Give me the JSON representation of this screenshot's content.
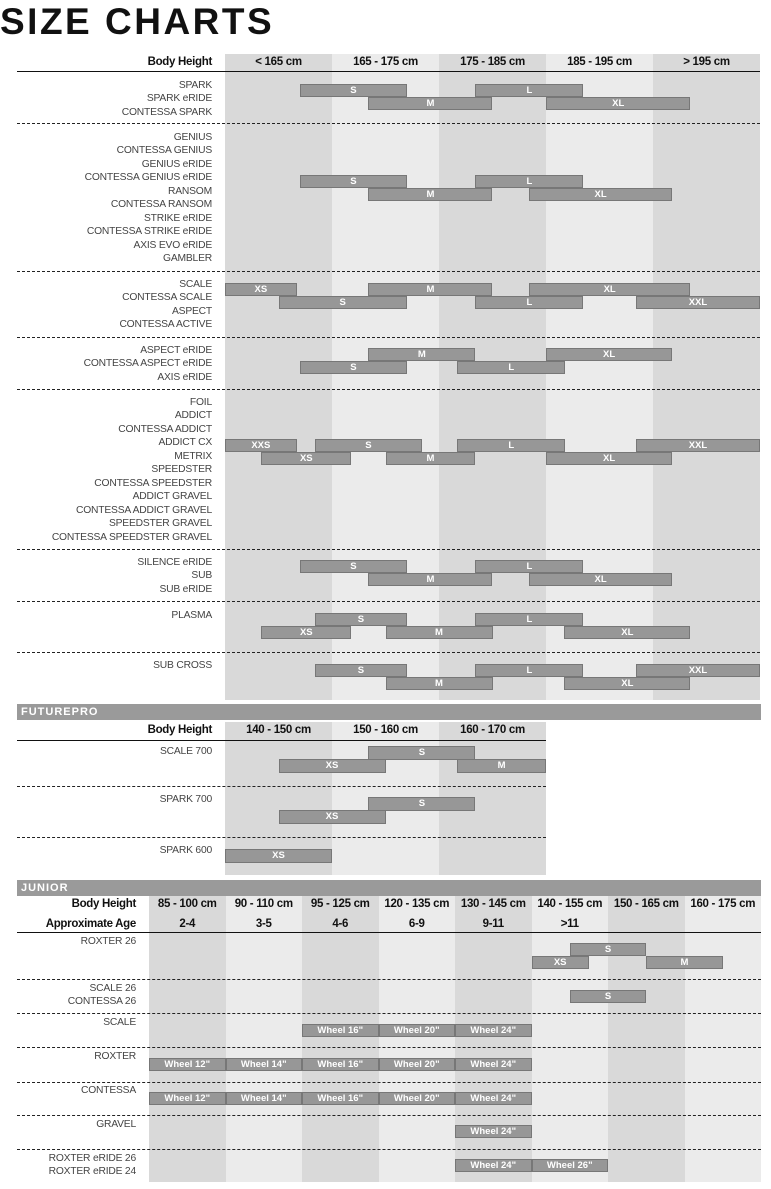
{
  "title": "SIZE CHARTS",
  "colors": {
    "bar": "#979797",
    "column_dark": "#d9d9d9",
    "column_light": "#ebebeb",
    "band": "#9a9a9a"
  },
  "main": {
    "header_label": "Body Height",
    "unit": "cm",
    "columns": [
      "< 165 cm",
      "165 - 175 cm",
      "175 - 185 cm",
      "185 - 195 cm",
      "> 195 cm"
    ],
    "groups": [
      {
        "models": [
          "SPARK",
          "SPARK eRIDE",
          "CONTESSA SPARK"
        ],
        "bars": [
          {
            "size": "S",
            "from": 162,
            "to": 172,
            "row": 0
          },
          {
            "size": "L",
            "from": 178.4,
            "to": 188.5,
            "row": 0
          },
          {
            "size": "M",
            "from": 168.4,
            "to": 180,
            "row": 1
          },
          {
            "size": "XL",
            "from": 185,
            "to": 198.5,
            "row": 1
          }
        ]
      },
      {
        "models": [
          "GENIUS",
          "CONTESSA GENIUS",
          "GENIUS eRIDE",
          "CONTESSA GENIUS eRIDE",
          "RANSOM",
          "CONTESSA RANSOM",
          "STRIKE eRIDE",
          "CONTESSA STRIKE eRIDE",
          "AXIS EVO eRIDE",
          "GAMBLER"
        ],
        "bars": [
          {
            "size": "S",
            "from": 162,
            "to": 172,
            "row": 0
          },
          {
            "size": "L",
            "from": 178.4,
            "to": 188.5,
            "row": 0
          },
          {
            "size": "M",
            "from": 168.4,
            "to": 180,
            "row": 1
          },
          {
            "size": "XL",
            "from": 183.4,
            "to": 196.8,
            "row": 1
          }
        ]
      },
      {
        "models": [
          "SCALE",
          "CONTESSA SCALE",
          "ASPECT",
          "CONTESSA ACTIVE"
        ],
        "bars": [
          {
            "size": "XS",
            "from": 155,
            "to": 161.7,
            "row": 0
          },
          {
            "size": "M",
            "from": 168.4,
            "to": 180,
            "row": 0
          },
          {
            "size": "XL",
            "from": 183.4,
            "to": 198.5,
            "row": 0
          },
          {
            "size": "S",
            "from": 160,
            "to": 172,
            "row": 1
          },
          {
            "size": "L",
            "from": 178.4,
            "to": 188.5,
            "row": 1
          },
          {
            "size": "XXL",
            "from": 193.4,
            "to": 205,
            "row": 1
          }
        ]
      },
      {
        "models": [
          "ASPECT eRIDE",
          "CONTESSA ASPECT eRIDE",
          "AXIS eRIDE"
        ],
        "bars": [
          {
            "size": "M",
            "from": 168.4,
            "to": 178.4,
            "row": 0
          },
          {
            "size": "XL",
            "from": 185,
            "to": 196.8,
            "row": 0
          },
          {
            "size": "S",
            "from": 162,
            "to": 172,
            "row": 1
          },
          {
            "size": "L",
            "from": 176.7,
            "to": 186.8,
            "row": 1
          }
        ]
      },
      {
        "models": [
          "FOIL",
          "ADDICT",
          "CONTESSA ADDICT",
          "ADDICT CX",
          "METRIX",
          "SPEEDSTER",
          "CONTESSA SPEEDSTER",
          "ADDICT GRAVEL",
          "CONTESSA ADDICT GRAVEL",
          "SPEEDSTER GRAVEL",
          "CONTESSA SPEEDSTER GRAVEL"
        ],
        "bars": [
          {
            "size": "XXS",
            "from": 155,
            "to": 161.7,
            "row": 0
          },
          {
            "size": "S",
            "from": 163.4,
            "to": 173.4,
            "row": 0
          },
          {
            "size": "L",
            "from": 176.7,
            "to": 186.8,
            "row": 0
          },
          {
            "size": "XXL",
            "from": 193.4,
            "to": 205,
            "row": 0
          },
          {
            "size": "XS",
            "from": 158.4,
            "to": 166.8,
            "row": 1
          },
          {
            "size": "M",
            "from": 170,
            "to": 178.4,
            "row": 1
          },
          {
            "size": "XL",
            "from": 185,
            "to": 196.8,
            "row": 1
          }
        ]
      },
      {
        "models": [
          "SILENCE eRIDE",
          "SUB",
          "SUB eRIDE"
        ],
        "bars": [
          {
            "size": "S",
            "from": 162,
            "to": 172,
            "row": 0
          },
          {
            "size": "L",
            "from": 178.4,
            "to": 188.5,
            "row": 0
          },
          {
            "size": "M",
            "from": 168.4,
            "to": 180,
            "row": 1
          },
          {
            "size": "XL",
            "from": 183.4,
            "to": 196.8,
            "row": 1
          }
        ]
      },
      {
        "models": [
          "PLASMA"
        ],
        "bars": [
          {
            "size": "S",
            "from": 163.4,
            "to": 172,
            "row": 0
          },
          {
            "size": "L",
            "from": 178.4,
            "to": 188.5,
            "row": 0
          },
          {
            "size": "XS",
            "from": 158.4,
            "to": 166.8,
            "row": 1
          },
          {
            "size": "M",
            "from": 170,
            "to": 180,
            "row": 1
          },
          {
            "size": "XL",
            "from": 186.7,
            "to": 198.5,
            "row": 1
          }
        ]
      },
      {
        "models": [
          "SUB CROSS"
        ],
        "bars": [
          {
            "size": "S",
            "from": 163.4,
            "to": 172,
            "row": 0
          },
          {
            "size": "L",
            "from": 178.4,
            "to": 188.5,
            "row": 0
          },
          {
            "size": "XXL",
            "from": 193.4,
            "to": 205,
            "row": 0
          },
          {
            "size": "M",
            "from": 170,
            "to": 180,
            "row": 1
          },
          {
            "size": "XL",
            "from": 186.7,
            "to": 198.5,
            "row": 1
          }
        ]
      }
    ]
  },
  "futurepro": {
    "section_title": "FUTUREPRO",
    "header_label": "Body Height",
    "unit": "cm",
    "columns": [
      "140 - 150 cm",
      "150 - 160 cm",
      "160 - 170 cm"
    ],
    "groups": [
      {
        "models": [
          "SCALE 700"
        ],
        "bars": [
          {
            "size": "S",
            "from": 153.4,
            "to": 163.4,
            "row": 0
          },
          {
            "size": "XS",
            "from": 145,
            "to": 155,
            "row": 1
          },
          {
            "size": "M",
            "from": 161.7,
            "to": 170,
            "row": 1
          }
        ]
      },
      {
        "models": [
          "SPARK 700"
        ],
        "bars": [
          {
            "size": "S",
            "from": 153.4,
            "to": 163.4,
            "row": 0
          },
          {
            "size": "XS",
            "from": 145,
            "to": 155,
            "row": 1
          }
        ]
      },
      {
        "models": [
          "SPARK 600"
        ],
        "bars": [
          {
            "size": "XS",
            "from": 140,
            "to": 150,
            "row": 0
          }
        ]
      }
    ]
  },
  "junior": {
    "section_title": "JUNIOR",
    "header_label": "Body Height",
    "age_label": "Approximate Age",
    "columns": [
      "85 - 100 cm",
      "90 - 110 cm",
      "95 - 125 cm",
      "120 - 135 cm",
      "130 - 145 cm",
      "140 - 155 cm",
      "150 - 165 cm",
      "160 - 175 cm"
    ],
    "ages": [
      "2-4",
      "3-5",
      "4-6",
      "6-9",
      "9-11",
      ">11",
      "",
      ""
    ],
    "groups": [
      {
        "models": [
          "ROXTER 26"
        ],
        "bars": [
          {
            "size": "S",
            "from_col": 5.5,
            "to_col": 6.5,
            "row": 0
          },
          {
            "size": "XS",
            "from_col": 5,
            "to_col": 5.75,
            "row": 1
          },
          {
            "size": "M",
            "from_col": 6.5,
            "to_col": 7.5,
            "row": 1
          }
        ]
      },
      {
        "models": [
          "SCALE 26",
          "CONTESSA 26"
        ],
        "bars": [
          {
            "size": "S",
            "from_col": 5.5,
            "to_col": 6.5,
            "row": 0
          }
        ]
      },
      {
        "models": [
          "SCALE"
        ],
        "bars": [
          {
            "size": "Wheel 16\"",
            "from_col": 2,
            "to_col": 3,
            "row": 0
          },
          {
            "size": "Wheel 20\"",
            "from_col": 3,
            "to_col": 4,
            "row": 0
          },
          {
            "size": "Wheel 24\"",
            "from_col": 4,
            "to_col": 5,
            "row": 0
          }
        ]
      },
      {
        "models": [
          "ROXTER"
        ],
        "bars": [
          {
            "size": "Wheel 12\"",
            "from_col": 0,
            "to_col": 1,
            "row": 0
          },
          {
            "size": "Wheel 14\"",
            "from_col": 1,
            "to_col": 2,
            "row": 0
          },
          {
            "size": "Wheel 16\"",
            "from_col": 2,
            "to_col": 3,
            "row": 0
          },
          {
            "size": "Wheel 20\"",
            "from_col": 3,
            "to_col": 4,
            "row": 0
          },
          {
            "size": "Wheel 24\"",
            "from_col": 4,
            "to_col": 5,
            "row": 0
          }
        ]
      },
      {
        "models": [
          "CONTESSA"
        ],
        "bars": [
          {
            "size": "Wheel 12\"",
            "from_col": 0,
            "to_col": 1,
            "row": 0
          },
          {
            "size": "Wheel 14\"",
            "from_col": 1,
            "to_col": 2,
            "row": 0
          },
          {
            "size": "Wheel 16\"",
            "from_col": 2,
            "to_col": 3,
            "row": 0
          },
          {
            "size": "Wheel 20\"",
            "from_col": 3,
            "to_col": 4,
            "row": 0
          },
          {
            "size": "Wheel 24\"",
            "from_col": 4,
            "to_col": 5,
            "row": 0
          }
        ]
      },
      {
        "models": [
          "GRAVEL"
        ],
        "bars": [
          {
            "size": "Wheel 24\"",
            "from_col": 4,
            "to_col": 5,
            "row": 0
          }
        ]
      },
      {
        "models": [
          "ROXTER eRIDE 26",
          "ROXTER eRIDE 24"
        ],
        "bars": [
          {
            "size": "Wheel 24\"",
            "from_col": 4,
            "to_col": 5,
            "row": 0
          },
          {
            "size": "Wheel 26\"",
            "from_col": 5,
            "to_col": 6,
            "row": 0
          }
        ]
      }
    ]
  }
}
